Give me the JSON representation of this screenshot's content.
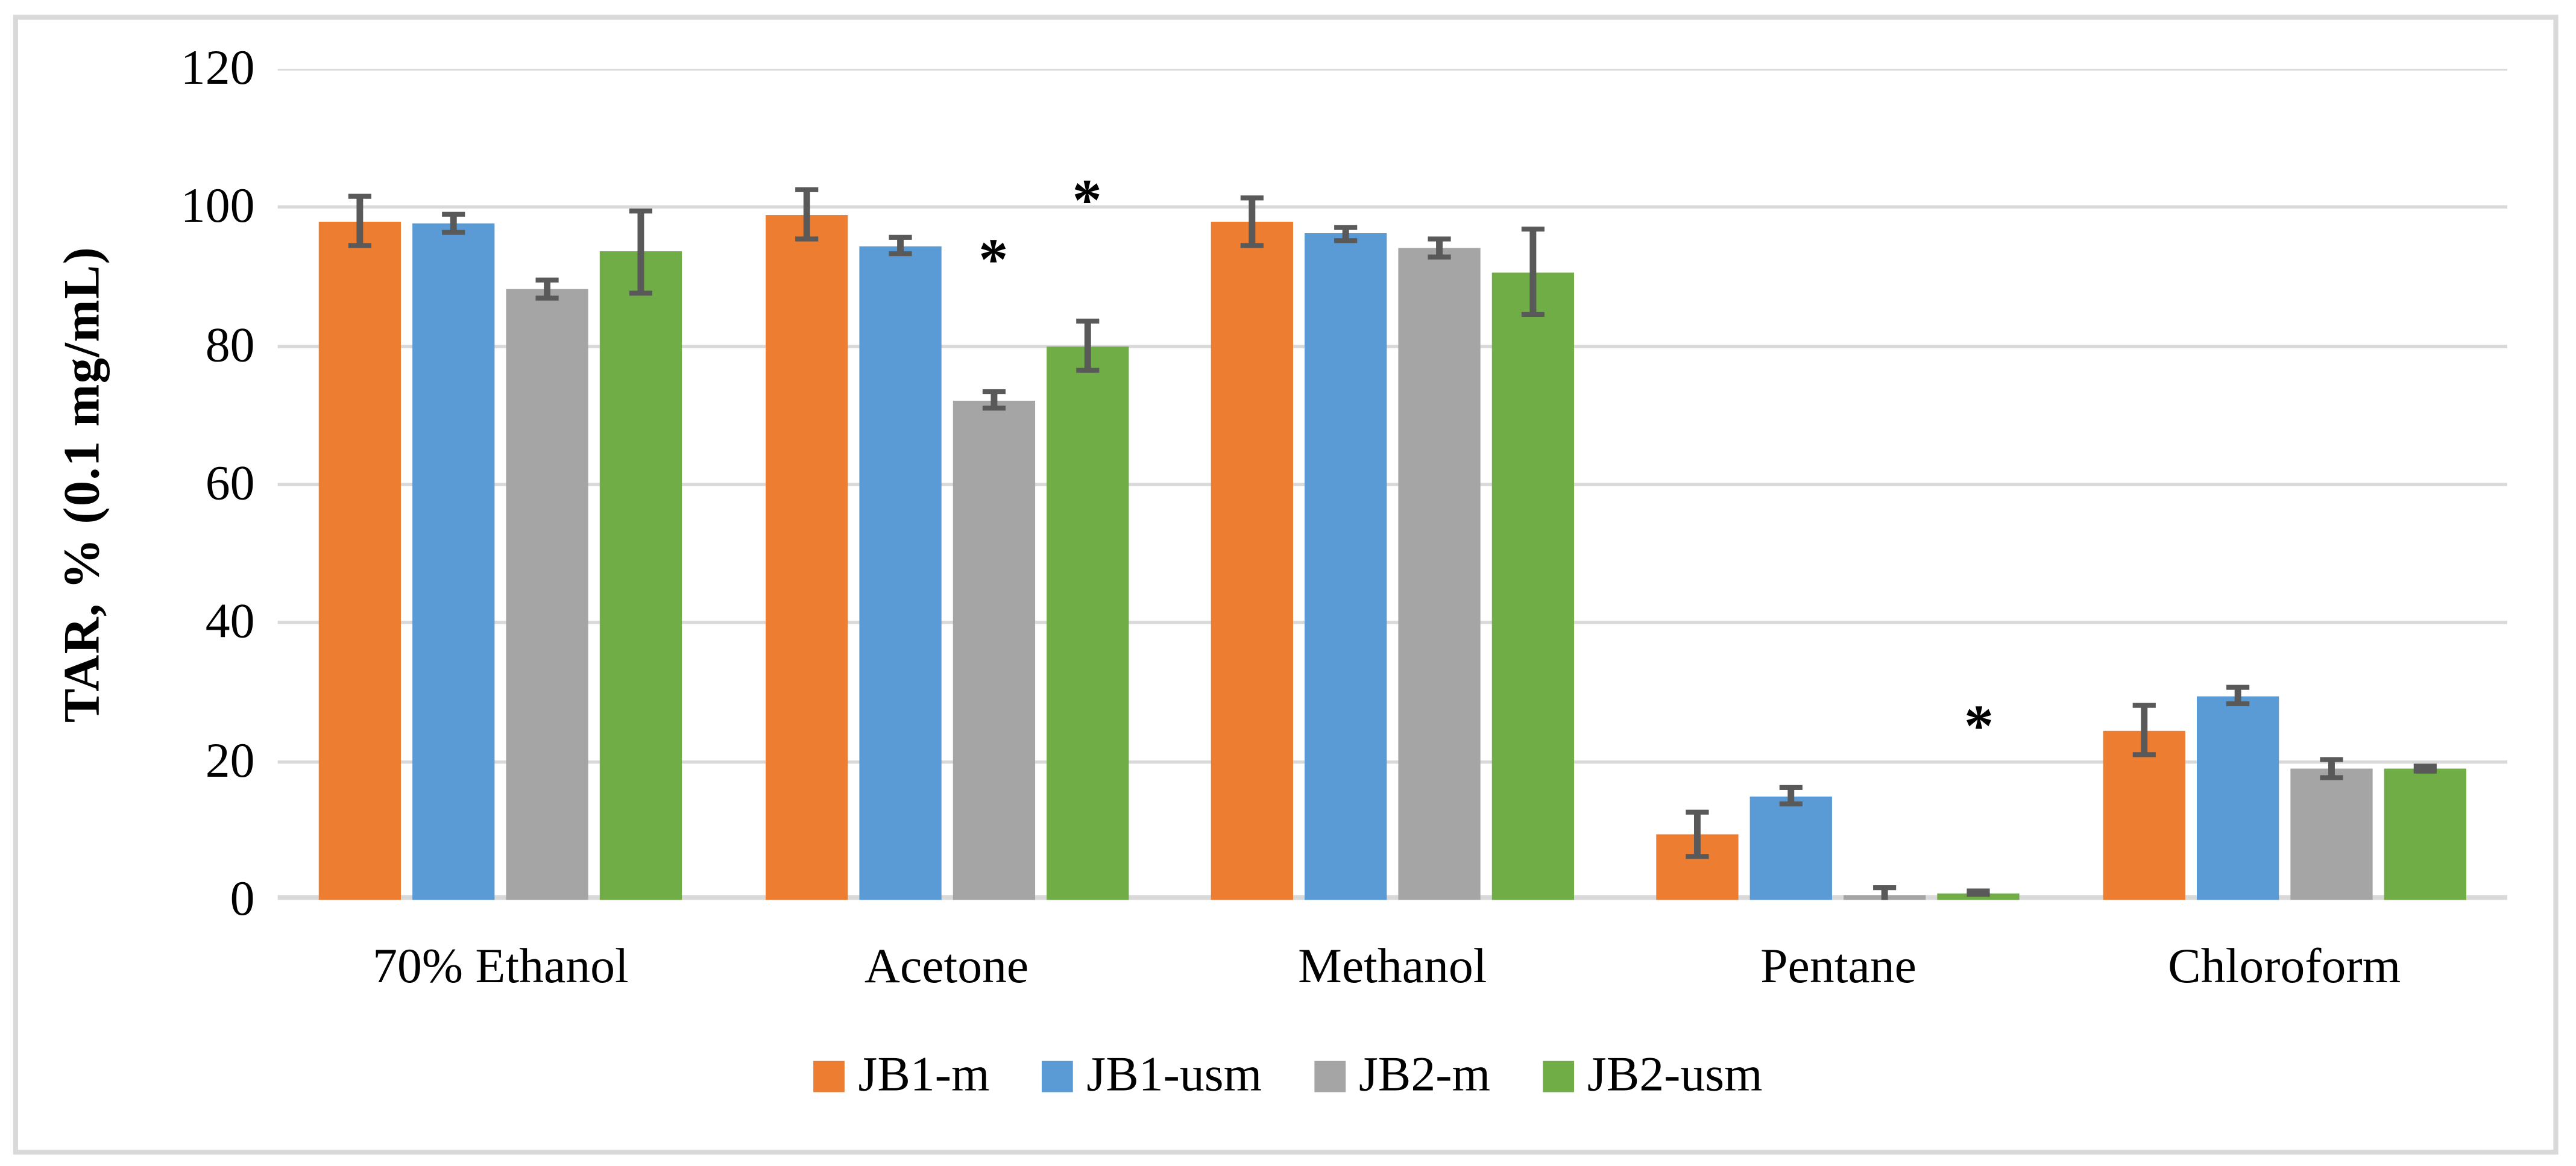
{
  "figure": {
    "background_color": "#FFFFFF",
    "border_color": "#D9D9D9"
  },
  "chart_data": {
    "type": "bar",
    "title": "",
    "xlabel": "",
    "ylabel": "TAR, % (0.1 mg/mL)",
    "ylim": [
      0,
      120
    ],
    "yticks": [
      0,
      20,
      40,
      60,
      80,
      100,
      120
    ],
    "grid": "horizontal",
    "gridline_color": "#D9D9D9",
    "error_bar_color": "#595959",
    "legend_position": "bottom",
    "categories": [
      "70% Ethanol",
      "Acetone",
      "Methanol",
      "Pentane",
      "Chloroform"
    ],
    "series": [
      {
        "name": "JB1-m",
        "color": "#ED7D31",
        "values": [
          98.0,
          99.0,
          98.0,
          9.5,
          24.5
        ],
        "errors": [
          3.6,
          3.5,
          3.5,
          3.3,
          3.6
        ]
      },
      {
        "name": "JB1-usm",
        "color": "#5B9BD5",
        "values": [
          97.7,
          94.5,
          96.2,
          15.0,
          29.5
        ],
        "errors": [
          1.2,
          1.2,
          1.0,
          1.2,
          1.2
        ]
      },
      {
        "name": "JB2-m",
        "color": "#A5A5A5",
        "values": [
          88.3,
          72.2,
          94.2,
          0.8,
          19.0
        ],
        "errors": [
          1.3,
          1.2,
          1.3,
          1.1,
          1.3
        ]
      },
      {
        "name": "JB2-usm",
        "color": "#70AD47",
        "values": [
          93.6,
          80.0,
          90.7,
          1.0,
          19.0
        ],
        "errors": [
          6.0,
          3.5,
          6.1,
          0.2,
          0.3
        ]
      }
    ],
    "annotations": [
      {
        "text": "*",
        "category_index": 1,
        "series_index": 2,
        "y": 94.0
      },
      {
        "text": "*",
        "category_index": 1,
        "series_index": 3,
        "y": 102.5
      },
      {
        "text": "*",
        "category_index": 3,
        "series_index": 3,
        "y": 26.5
      }
    ]
  }
}
